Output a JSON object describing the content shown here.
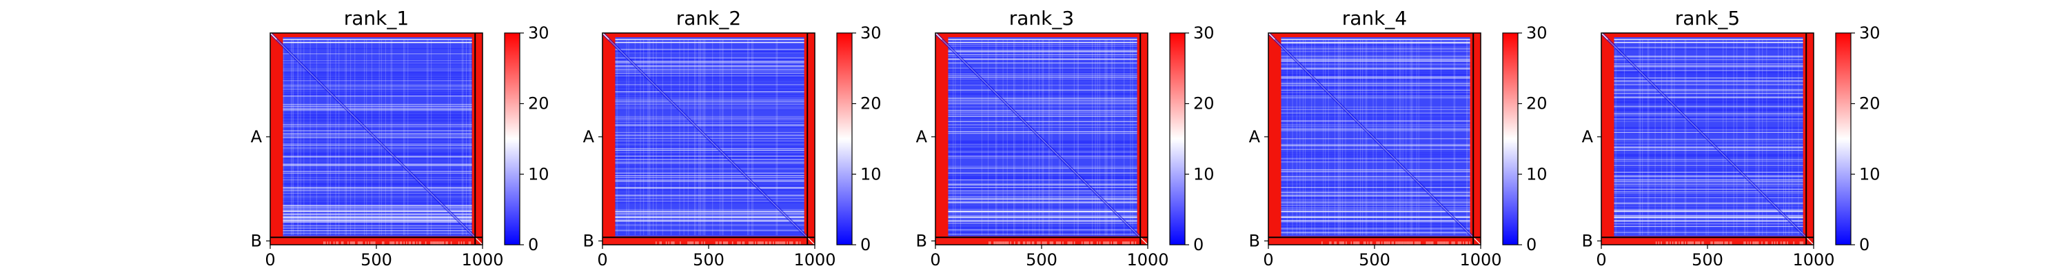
{
  "figure": {
    "colors": {
      "low": "#0000ff",
      "mid": "#ffffff",
      "high": "#ff0000",
      "frame": "#000000"
    }
  },
  "chart_data": [
    {
      "type": "heatmap",
      "title": "rank_1",
      "xlabel": "",
      "ylabel": "",
      "x_ticks": [
        "0",
        "500",
        "1000"
      ],
      "x_tick_values": [
        0,
        500,
        1000
      ],
      "xlim": [
        0,
        1000
      ],
      "y_ticks": [
        "A",
        "B"
      ],
      "chains": [
        {
          "name": "A",
          "start": 0,
          "end": 965,
          "tick_at": 490
        },
        {
          "name": "B",
          "start": 965,
          "end": 1000,
          "tick_at": 982
        }
      ],
      "colorbar": {
        "range": [
          0,
          30
        ],
        "ticks": [
          "0",
          "10",
          "20",
          "30"
        ],
        "tick_values": [
          0,
          10,
          20,
          30
        ],
        "colormap": "bwr"
      }
    },
    {
      "type": "heatmap",
      "title": "rank_2",
      "xlabel": "",
      "ylabel": "",
      "x_ticks": [
        "0",
        "500",
        "1000"
      ],
      "x_tick_values": [
        0,
        500,
        1000
      ],
      "xlim": [
        0,
        1000
      ],
      "y_ticks": [
        "A",
        "B"
      ],
      "chains": [
        {
          "name": "A",
          "start": 0,
          "end": 965,
          "tick_at": 490
        },
        {
          "name": "B",
          "start": 965,
          "end": 1000,
          "tick_at": 982
        }
      ],
      "colorbar": {
        "range": [
          0,
          30
        ],
        "ticks": [
          "0",
          "10",
          "20",
          "30"
        ],
        "tick_values": [
          0,
          10,
          20,
          30
        ],
        "colormap": "bwr"
      }
    },
    {
      "type": "heatmap",
      "title": "rank_3",
      "xlabel": "",
      "ylabel": "",
      "x_ticks": [
        "0",
        "500",
        "1000"
      ],
      "x_tick_values": [
        0,
        500,
        1000
      ],
      "xlim": [
        0,
        1000
      ],
      "y_ticks": [
        "A",
        "B"
      ],
      "chains": [
        {
          "name": "A",
          "start": 0,
          "end": 965,
          "tick_at": 490
        },
        {
          "name": "B",
          "start": 965,
          "end": 1000,
          "tick_at": 982
        }
      ],
      "colorbar": {
        "range": [
          0,
          30
        ],
        "ticks": [
          "0",
          "10",
          "20",
          "30"
        ],
        "tick_values": [
          0,
          10,
          20,
          30
        ],
        "colormap": "bwr"
      }
    },
    {
      "type": "heatmap",
      "title": "rank_4",
      "xlabel": "",
      "ylabel": "",
      "x_ticks": [
        "0",
        "500",
        "1000"
      ],
      "x_tick_values": [
        0,
        500,
        1000
      ],
      "xlim": [
        0,
        1000
      ],
      "y_ticks": [
        "A",
        "B"
      ],
      "chains": [
        {
          "name": "A",
          "start": 0,
          "end": 965,
          "tick_at": 490
        },
        {
          "name": "B",
          "start": 965,
          "end": 1000,
          "tick_at": 982
        }
      ],
      "colorbar": {
        "range": [
          0,
          30
        ],
        "ticks": [
          "0",
          "10",
          "20",
          "30"
        ],
        "tick_values": [
          0,
          10,
          20,
          30
        ],
        "colormap": "bwr"
      }
    },
    {
      "type": "heatmap",
      "title": "rank_5",
      "xlabel": "",
      "ylabel": "",
      "x_ticks": [
        "0",
        "500",
        "1000"
      ],
      "x_tick_values": [
        0,
        500,
        1000
      ],
      "xlim": [
        0,
        1000
      ],
      "y_ticks": [
        "A",
        "B"
      ],
      "chains": [
        {
          "name": "A",
          "start": 0,
          "end": 965,
          "tick_at": 490
        },
        {
          "name": "B",
          "start": 965,
          "end": 1000,
          "tick_at": 982
        }
      ],
      "colorbar": {
        "range": [
          0,
          30
        ],
        "ticks": [
          "0",
          "10",
          "20",
          "30"
        ],
        "tick_values": [
          0,
          10,
          20,
          30
        ],
        "colormap": "bwr"
      }
    }
  ]
}
